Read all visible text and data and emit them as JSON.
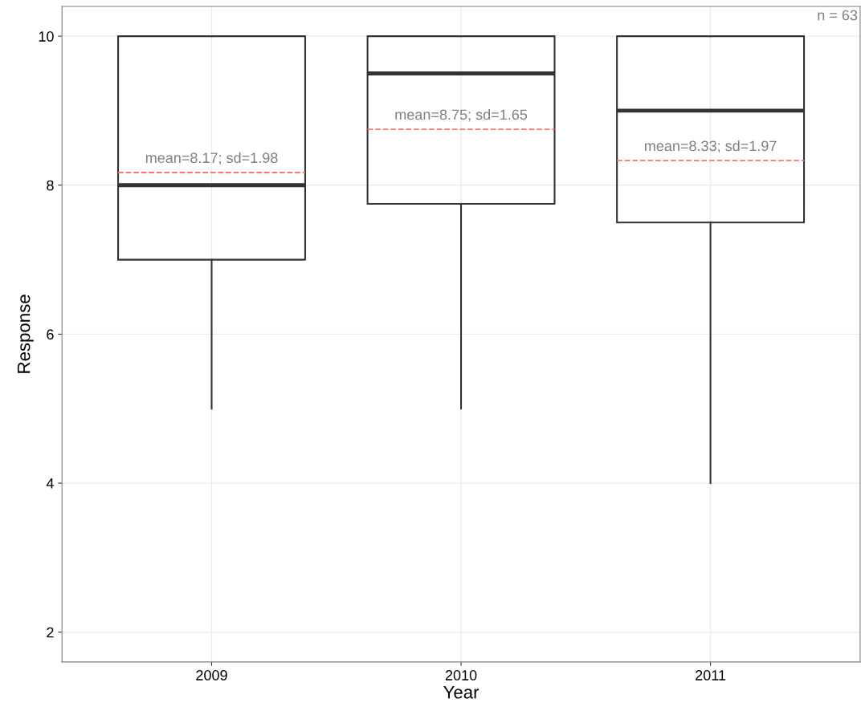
{
  "chart_data": {
    "type": "box",
    "xlabel": "Year",
    "ylabel": "Response",
    "categories": [
      "2009",
      "2010",
      "2011"
    ],
    "boxes": [
      {
        "low": 5,
        "q1": 7,
        "median": 8,
        "q3": 10,
        "high": 10,
        "mean": 8.17
      },
      {
        "low": 5,
        "q1": 7.75,
        "median": 9.5,
        "q3": 10,
        "high": 10,
        "mean": 8.75
      },
      {
        "low": 4,
        "q1": 7.5,
        "median": 9,
        "q3": 10,
        "high": 10,
        "mean": 8.33
      }
    ],
    "ylim": [
      1.6,
      10.4
    ],
    "yticks": [
      2,
      4,
      6,
      8,
      10
    ],
    "grid": true,
    "annotations": [
      {
        "text": "mean=8.17; sd=1.98",
        "x": "2009",
        "y": 8.17
      },
      {
        "text": "mean=8.75; sd=1.65",
        "x": "2010",
        "y": 8.75
      },
      {
        "text": "mean=8.33; sd=1.97",
        "x": "2011",
        "y": 8.33
      },
      "n = 63"
    ]
  }
}
